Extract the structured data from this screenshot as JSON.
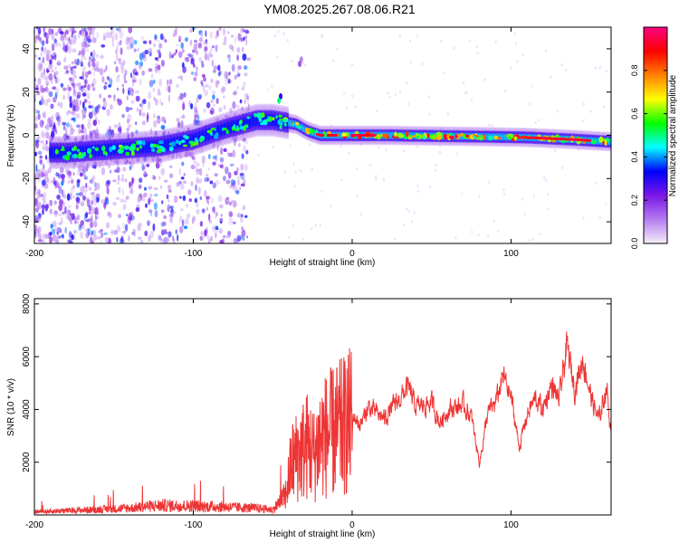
{
  "title": "YM08.2025.267.08.06.R21",
  "chart_data": [
    {
      "type": "heatmap",
      "name": "spectrogram",
      "xlabel": "Height of straight line (km)",
      "ylabel": "Frequency (Hz)",
      "xlim": [
        -200,
        163
      ],
      "ylim": [
        -50,
        50
      ],
      "xticks": [
        -200,
        -100,
        0,
        100
      ],
      "yticks": [
        -40,
        -20,
        0,
        20,
        40
      ],
      "colorbar": {
        "label": "Normalized spectral amplitude",
        "range": [
          0,
          1
        ],
        "ticks": [
          0.0,
          0.2,
          0.4,
          0.6,
          0.8
        ],
        "colors": [
          "#f4eef8",
          "#b57cf0",
          "#7a16e6",
          "#0000ff",
          "#00ffff",
          "#00ff00",
          "#ffff00",
          "#ff8000",
          "#ff0000",
          "#ff0080"
        ]
      },
      "ridge": {
        "x": [
          -200,
          -190,
          -180,
          -160,
          -140,
          -120,
          -100,
          -80,
          -60,
          -50,
          -42,
          -35,
          -28,
          -20,
          -10,
          0,
          20,
          50,
          80,
          110,
          140,
          163
        ],
        "y": [
          -7,
          -8,
          -8,
          -7,
          -6,
          -5,
          -2,
          3,
          7,
          7,
          6,
          5,
          2,
          0,
          0,
          0,
          0,
          -0.3,
          -0.6,
          -1,
          -2,
          -3
        ]
      }
    },
    {
      "type": "line",
      "name": "snr",
      "xlabel": "Height of straight line (km)",
      "ylabel": "SNR (10 * v/v)",
      "xlim": [
        -200,
        163
      ],
      "ylim": [
        0,
        8200
      ],
      "xticks": [
        -200,
        -100,
        0,
        100
      ],
      "yticks": [
        2000,
        4000,
        6000,
        8000
      ],
      "color": "#ee3535",
      "envelope": {
        "x": [
          -200,
          -180,
          -160,
          -140,
          -130,
          -120,
          -100,
          -80,
          -60,
          -50,
          -42,
          -38,
          -32,
          -28,
          -24,
          -20,
          -15,
          -10,
          -5,
          0,
          5,
          10,
          20,
          30,
          35,
          40,
          50,
          55,
          60,
          70,
          75,
          80,
          85,
          90,
          95,
          100,
          105,
          110,
          115,
          120,
          125,
          130,
          135,
          140,
          145,
          150,
          155,
          160,
          163
        ],
        "y": [
          150,
          200,
          260,
          320,
          400,
          450,
          420,
          380,
          320,
          250,
          900,
          2500,
          3000,
          3300,
          2800,
          3600,
          3800,
          4000,
          4200,
          4500,
          4000,
          4800,
          4300,
          5200,
          5700,
          4800,
          5000,
          4100,
          4700,
          4900,
          4300,
          2300,
          4500,
          5000,
          6200,
          5200,
          3000,
          4500,
          5200,
          4700,
          5800,
          5100,
          7500,
          5600,
          7000,
          5300,
          4200,
          5800,
          3300
        ]
      }
    }
  ]
}
